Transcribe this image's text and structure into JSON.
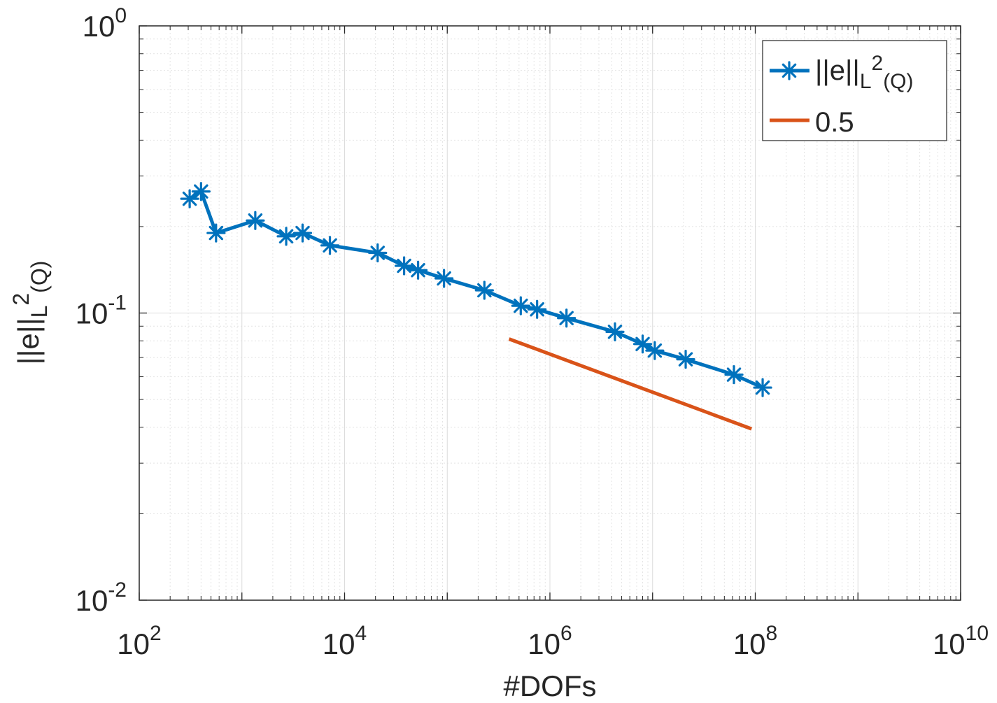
{
  "chart_data": {
    "type": "line",
    "xscale": "log",
    "yscale": "log",
    "xlim": [
      100,
      10000000000
    ],
    "ylim": [
      0.01,
      1
    ],
    "xlabel": "#DOFs",
    "ylabel": {
      "base": "||e||",
      "sub": "L",
      "sup": "2",
      "tail": "(Q)"
    },
    "grid": true,
    "x_ticks": [
      {
        "base": "10",
        "exp": "2"
      },
      {
        "base": "10",
        "exp": "4"
      },
      {
        "base": "10",
        "exp": "6"
      },
      {
        "base": "10",
        "exp": "8"
      },
      {
        "base": "10",
        "exp": "10"
      }
    ],
    "y_ticks": [
      {
        "base": "10",
        "exp": "-2"
      },
      {
        "base": "10",
        "exp": "-1"
      },
      {
        "base": "10",
        "exp": "0"
      }
    ],
    "legend": {
      "position": "top-right",
      "entries": [
        {
          "base": "||e||",
          "sub": "L",
          "sup": "2",
          "tail": "(Q)"
        },
        {
          "text": "0.5"
        }
      ]
    },
    "series": [
      {
        "name": "||e||_L2(Q)",
        "color": "#0072BD",
        "marker": "asterisk",
        "x": [
          310,
          400,
          560,
          1350,
          2700,
          3900,
          7200,
          21000,
          38000,
          52000,
          93000,
          230000,
          520000,
          750000,
          1450000,
          4300000,
          8000000,
          10500000,
          21000000,
          62000000,
          118000000
        ],
        "y": [
          0.25,
          0.265,
          0.19,
          0.21,
          0.185,
          0.19,
          0.172,
          0.162,
          0.146,
          0.141,
          0.132,
          0.12,
          0.106,
          0.103,
          0.096,
          0.086,
          0.078,
          0.074,
          0.069,
          0.061,
          0.055
        ]
      },
      {
        "name": "0.5",
        "color": "#D95319",
        "marker": "none",
        "x": [
          400000,
          92000000
        ],
        "y": [
          0.0812,
          0.0395
        ]
      }
    ]
  }
}
